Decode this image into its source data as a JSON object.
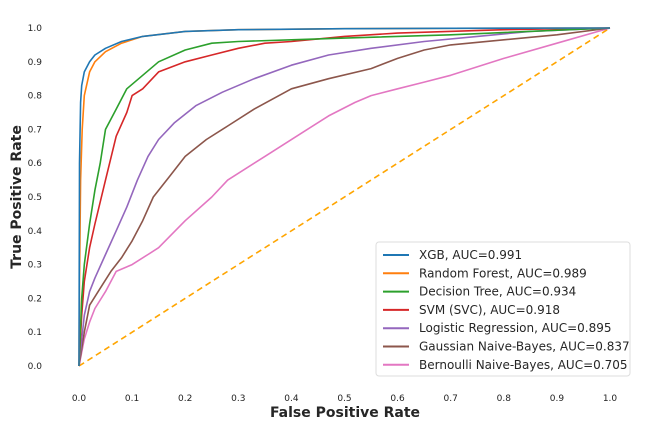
{
  "chart_data": {
    "type": "line",
    "xlabel": "False Positive Rate",
    "ylabel": "True Positive Rate",
    "xlim": [
      0.0,
      1.0
    ],
    "ylim": [
      0.0,
      1.0
    ],
    "xticks": [
      "0.0",
      "0.1",
      "0.2",
      "0.3",
      "0.4",
      "0.5",
      "0.6",
      "0.7",
      "0.8",
      "0.9",
      "1.0"
    ],
    "yticks": [
      "0.0",
      "0.1",
      "0.2",
      "0.3",
      "0.4",
      "0.5",
      "0.6",
      "0.7",
      "0.8",
      "0.9",
      "1.0"
    ],
    "grid": false,
    "legend_position": "bottom-right",
    "series": [
      {
        "name": "XGB, AUC=0.991",
        "color": "#1f77b4",
        "x": [
          0,
          0.001,
          0.003,
          0.005,
          0.01,
          0.02,
          0.03,
          0.05,
          0.08,
          0.12,
          0.2,
          0.3,
          0.5,
          0.7,
          1.0
        ],
        "y": [
          0,
          0.6,
          0.78,
          0.83,
          0.87,
          0.9,
          0.92,
          0.94,
          0.96,
          0.975,
          0.99,
          0.995,
          0.998,
          0.999,
          1.0
        ]
      },
      {
        "name": "Random Forest, AUC=0.989",
        "color": "#ff7f0e",
        "x": [
          0,
          0.001,
          0.003,
          0.006,
          0.01,
          0.02,
          0.03,
          0.05,
          0.08,
          0.12,
          0.2,
          0.3,
          0.5,
          0.7,
          1.0
        ],
        "y": [
          0,
          0.25,
          0.55,
          0.7,
          0.8,
          0.87,
          0.9,
          0.93,
          0.955,
          0.975,
          0.99,
          0.995,
          0.998,
          0.999,
          1.0
        ]
      },
      {
        "name": "Decision Tree, AUC=0.934",
        "color": "#2ca02c",
        "x": [
          0,
          0.005,
          0.01,
          0.02,
          0.03,
          0.04,
          0.05,
          0.07,
          0.09,
          0.12,
          0.15,
          0.2,
          0.25,
          0.3,
          0.4,
          0.5,
          0.7,
          1.0
        ],
        "y": [
          0,
          0.2,
          0.3,
          0.42,
          0.52,
          0.6,
          0.7,
          0.76,
          0.82,
          0.86,
          0.9,
          0.935,
          0.955,
          0.96,
          0.965,
          0.97,
          0.98,
          1.0
        ]
      },
      {
        "name": "SVM (SVC), AUC=0.918",
        "color": "#d62728",
        "x": [
          0,
          0.005,
          0.01,
          0.02,
          0.03,
          0.05,
          0.07,
          0.09,
          0.1,
          0.12,
          0.15,
          0.2,
          0.25,
          0.3,
          0.35,
          0.4,
          0.5,
          0.6,
          0.8,
          1.0
        ],
        "y": [
          0,
          0.15,
          0.25,
          0.35,
          0.42,
          0.55,
          0.68,
          0.75,
          0.8,
          0.82,
          0.87,
          0.9,
          0.92,
          0.94,
          0.955,
          0.96,
          0.975,
          0.985,
          0.995,
          1.0
        ]
      },
      {
        "name": "Logistic Regression, AUC=0.895",
        "color": "#9467bd",
        "x": [
          0,
          0.01,
          0.02,
          0.03,
          0.05,
          0.07,
          0.09,
          0.11,
          0.13,
          0.15,
          0.18,
          0.22,
          0.27,
          0.33,
          0.4,
          0.47,
          0.55,
          0.65,
          0.75,
          0.85,
          1.0
        ],
        "y": [
          0,
          0.15,
          0.22,
          0.26,
          0.33,
          0.4,
          0.47,
          0.55,
          0.62,
          0.67,
          0.72,
          0.77,
          0.81,
          0.85,
          0.89,
          0.92,
          0.94,
          0.96,
          0.975,
          0.99,
          1.0
        ]
      },
      {
        "name": "Gaussian Naive-Bayes, AUC=0.837",
        "color": "#8c564b",
        "x": [
          0,
          0.01,
          0.02,
          0.04,
          0.06,
          0.08,
          0.1,
          0.12,
          0.14,
          0.17,
          0.2,
          0.24,
          0.28,
          0.33,
          0.4,
          0.47,
          0.55,
          0.6,
          0.65,
          0.7,
          0.8,
          0.9,
          1.0
        ],
        "y": [
          0,
          0.1,
          0.18,
          0.23,
          0.28,
          0.32,
          0.37,
          0.43,
          0.5,
          0.56,
          0.62,
          0.67,
          0.71,
          0.76,
          0.82,
          0.85,
          0.88,
          0.91,
          0.935,
          0.95,
          0.965,
          0.98,
          1.0
        ]
      },
      {
        "name": "Bernoulli Naive-Bayes, AUC=0.705",
        "color": "#e377c2",
        "x": [
          0,
          0.01,
          0.02,
          0.03,
          0.05,
          0.07,
          0.1,
          0.13,
          0.15,
          0.2,
          0.25,
          0.28,
          0.35,
          0.42,
          0.47,
          0.52,
          0.55,
          0.6,
          0.65,
          0.7,
          0.8,
          0.9,
          1.0
        ],
        "y": [
          0,
          0.08,
          0.13,
          0.17,
          0.22,
          0.28,
          0.3,
          0.33,
          0.35,
          0.43,
          0.5,
          0.55,
          0.62,
          0.69,
          0.74,
          0.78,
          0.8,
          0.82,
          0.84,
          0.86,
          0.91,
          0.955,
          1.0
        ]
      }
    ],
    "baseline": {
      "x": [
        0,
        1
      ],
      "y": [
        0,
        1
      ],
      "color": "#ffa500",
      "style": "dashed"
    }
  }
}
